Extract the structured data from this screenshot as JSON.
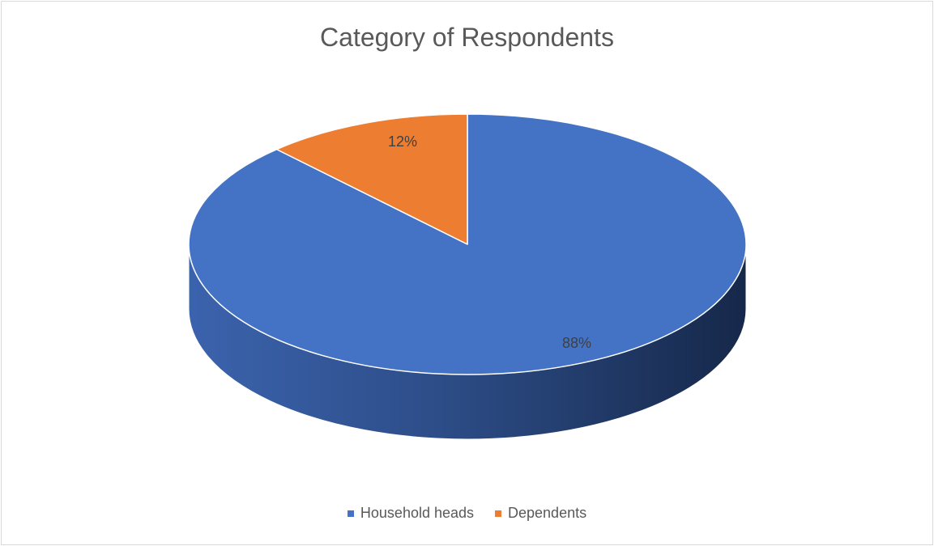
{
  "chart_data": {
    "type": "pie",
    "title": "Category of Respondents",
    "slices": [
      {
        "label": "Household heads",
        "value": 88,
        "data_label": "88%",
        "color": "#4472C4"
      },
      {
        "label": "Dependents",
        "value": 12,
        "data_label": "12%",
        "color": "#ED7D31"
      }
    ],
    "style": "3d",
    "legend_position": "bottom"
  }
}
